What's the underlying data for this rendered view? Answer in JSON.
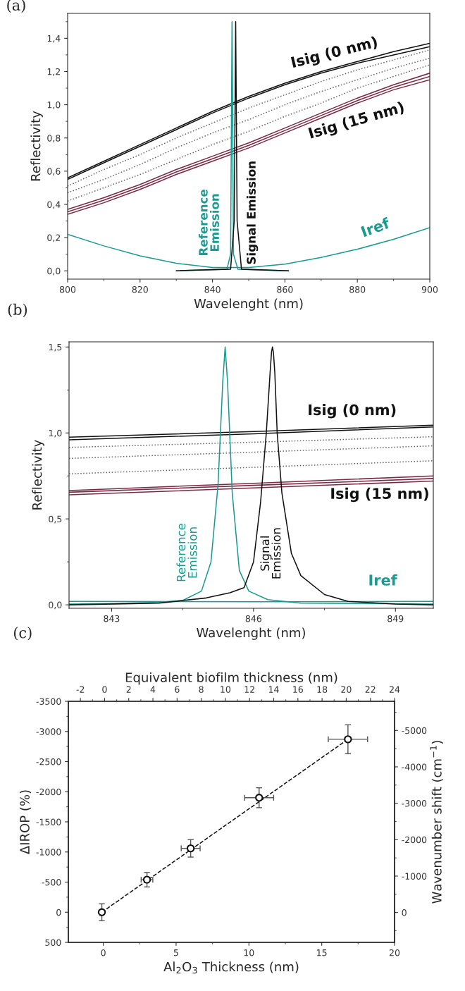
{
  "chart_data": [
    {
      "type": "line",
      "xlabel": "Wavelenght (nm)",
      "ylabel": "Reflectivity",
      "x": [
        800,
        810,
        820,
        830,
        840,
        850,
        860,
        870,
        880,
        890,
        900
      ],
      "xlim": [
        800,
        900
      ],
      "ylim": [
        -0.05,
        1.55
      ],
      "xticks": [
        800,
        {
          "value": 810,
          "label": null
        },
        820,
        {
          "value": 830,
          "label": null
        },
        840,
        {
          "value": 850,
          "label": null
        },
        860,
        {
          "value": 870,
          "label": null
        },
        880,
        {
          "value": 890,
          "label": null
        },
        900
      ],
      "yticks": [
        {
          "value": 0,
          "label": "0,0"
        },
        {
          "value": 0.1,
          "label": null
        },
        {
          "value": 0.2,
          "label": "0,2"
        },
        {
          "value": 0.3,
          "label": null
        },
        {
          "value": 0.4,
          "label": "0,4"
        },
        {
          "value": 0.5,
          "label": null
        },
        {
          "value": 0.6,
          "label": "0,6"
        },
        {
          "value": 0.7,
          "label": null
        },
        {
          "value": 0.8,
          "label": "0,8"
        },
        {
          "value": 0.9,
          "label": null
        },
        {
          "value": 1.0,
          "label": "1,0"
        },
        {
          "value": 1.1,
          "label": null
        },
        {
          "value": 1.2,
          "label": "1,2"
        },
        {
          "value": 1.3,
          "label": null
        },
        {
          "value": 1.4,
          "label": "1,4"
        },
        {
          "value": 1.5,
          "label": null
        }
      ],
      "series": [
        {
          "color": "#111111",
          "values": [
            0.56,
            0.66,
            0.76,
            0.86,
            0.96,
            1.05,
            1.13,
            1.2,
            1.26,
            1.32,
            1.37
          ]
        },
        {
          "color": "#111111",
          "values": [
            0.55,
            0.65,
            0.75,
            0.85,
            0.95,
            1.04,
            1.12,
            1.19,
            1.25,
            1.3,
            1.35
          ]
        },
        {
          "color": "#666666",
          "line_style": "dotted",
          "values": [
            0.51,
            0.61,
            0.7,
            0.8,
            0.89,
            0.98,
            1.06,
            1.14,
            1.21,
            1.27,
            1.33
          ]
        },
        {
          "color": "#666666",
          "line_style": "dotted",
          "values": [
            0.47,
            0.55,
            0.64,
            0.74,
            0.83,
            0.91,
            1.0,
            1.08,
            1.15,
            1.22,
            1.28
          ]
        },
        {
          "color": "#666666",
          "line_style": "dotted",
          "values": [
            0.42,
            0.5,
            0.58,
            0.67,
            0.76,
            0.84,
            0.93,
            1.01,
            1.1,
            1.17,
            1.24
          ]
        },
        {
          "color": "#7b2a45",
          "values": [
            0.37,
            0.44,
            0.52,
            0.61,
            0.69,
            0.77,
            0.86,
            0.95,
            1.04,
            1.12,
            1.19
          ]
        },
        {
          "color": "#7b2a45",
          "values": [
            0.355,
            0.425,
            0.505,
            0.595,
            0.675,
            0.755,
            0.845,
            0.935,
            1.025,
            1.105,
            1.17
          ]
        },
        {
          "color": "#7b2a45",
          "values": [
            0.34,
            0.41,
            0.49,
            0.58,
            0.66,
            0.74,
            0.83,
            0.92,
            1.01,
            1.09,
            1.15
          ]
        },
        {
          "color": "#1a9a90",
          "values": [
            0.22,
            0.15,
            0.09,
            0.045,
            0.02,
            0.02,
            0.04,
            0.08,
            0.13,
            0.19,
            0.26
          ]
        },
        {
          "color": "#1a9a90",
          "x": [
            830,
            844,
            845,
            845.4,
            845.8,
            847,
            861
          ],
          "values": [
            0.0,
            0.01,
            0.1,
            1.5,
            0.1,
            0.01,
            0.0
          ]
        },
        {
          "color": "#111111",
          "x": [
            830,
            845,
            846,
            846.4,
            846.8,
            848,
            861
          ],
          "values": [
            0.0,
            0.01,
            0.3,
            1.5,
            0.3,
            0.01,
            0.0
          ]
        }
      ],
      "annotations": [
        "(a)",
        "Isig (0 nm)",
        "Isig (15 nm)",
        "Iref",
        "Reference\nEmission",
        "Signal Emission"
      ]
    },
    {
      "type": "line",
      "xlabel": "Wavelenght (nm)",
      "ylabel": "Reflectivity",
      "x": [
        842.1,
        846,
        849.8
      ],
      "xlim": [
        842.1,
        849.8
      ],
      "ylim": [
        -0.02,
        1.53
      ],
      "xticks": [
        843,
        {
          "value": 844.5,
          "label": null
        },
        846,
        {
          "value": 847.5,
          "label": null
        },
        849
      ],
      "yticks": [
        {
          "value": 0,
          "label": "0,0"
        },
        {
          "value": 0.25,
          "label": null
        },
        {
          "value": 0.5,
          "label": "0,5"
        },
        {
          "value": 0.75,
          "label": null
        },
        {
          "value": 1.0,
          "label": "1,0"
        },
        {
          "value": 1.25,
          "label": null
        },
        {
          "value": 1.5,
          "label": "1,5"
        }
      ],
      "series": [
        {
          "color": "#111111",
          "values": [
            0.975,
            1.008,
            1.045
          ]
        },
        {
          "color": "#111111",
          "values": [
            0.96,
            0.995,
            1.035
          ]
        },
        {
          "color": "#666666",
          "line_style": "dotted",
          "values": [
            0.916,
            0.946,
            0.978
          ]
        },
        {
          "color": "#666666",
          "line_style": "dotted",
          "values": [
            0.852,
            0.888,
            0.925
          ]
        },
        {
          "color": "#666666",
          "line_style": "dotted",
          "values": [
            0.762,
            0.8,
            0.838
          ]
        },
        {
          "color": "#7b2a45",
          "values": [
            0.665,
            0.707,
            0.75
          ]
        },
        {
          "color": "#7b2a45",
          "values": [
            0.655,
            0.695,
            0.735
          ]
        },
        {
          "color": "#7b2a45",
          "values": [
            0.64,
            0.68,
            0.72
          ]
        },
        {
          "color": "#1a9a90",
          "values": [
            0.02,
            0.018,
            0.02
          ]
        },
        {
          "color": "#1a9a90",
          "x": [
            842.1,
            843,
            844,
            844.5,
            844.9,
            845.1,
            845.25,
            845.35,
            845.4,
            845.45,
            845.55,
            845.7,
            845.9,
            846.3,
            847,
            849.8
          ],
          "values": [
            0.005,
            0.008,
            0.015,
            0.025,
            0.08,
            0.25,
            0.7,
            1.3,
            1.5,
            1.3,
            0.65,
            0.2,
            0.08,
            0.03,
            0.01,
            0.005
          ]
        },
        {
          "color": "#111111",
          "x": [
            842.1,
            844,
            845,
            845.5,
            845.8,
            846.0,
            846.15,
            846.27,
            846.35,
            846.38,
            846.4,
            846.42,
            846.45,
            846.5,
            846.6,
            846.8,
            847,
            847.5,
            848,
            849,
            849.8
          ],
          "values": [
            0.0,
            0.01,
            0.04,
            0.07,
            0.1,
            0.25,
            0.6,
            1.0,
            1.35,
            1.47,
            1.5,
            1.47,
            1.35,
            1.0,
            0.65,
            0.3,
            0.17,
            0.06,
            0.02,
            0.005,
            0.0
          ]
        }
      ],
      "annotations": [
        "(b)",
        "Isig (0 nm)",
        "Isig (15 nm)",
        "Iref",
        "Reference\nEmission",
        "Signal\nEmission"
      ]
    },
    {
      "type": "scatter",
      "xlabel": "Al$_{2}$O$_{3}$ Thickness (nm)",
      "ylabel": "ΔIROP (%)",
      "y2label": "Wavenumber shift (cm$^{−1}$)",
      "x2label": "Equivalent biofilm thickness (nm)",
      "xlim": [
        -2.4,
        20
      ],
      "ylim": [
        500,
        -3500
      ],
      "x2lim": [
        -3,
        24
      ],
      "y2lim": [
        820,
        -5800
      ],
      "xticks": [
        0,
        {
          "value": 2.5,
          "label": null
        },
        5,
        {
          "value": 7.5,
          "label": null
        },
        10,
        {
          "value": 12.5,
          "label": null
        },
        15,
        {
          "value": 17.5,
          "label": null
        },
        20
      ],
      "yticks": [
        500,
        {
          "value": 250,
          "label": null
        },
        0,
        {
          "value": -250,
          "label": null
        },
        -500,
        {
          "value": -750,
          "label": null
        },
        -1000,
        {
          "value": -1250,
          "label": null
        },
        -1500,
        {
          "value": -1750,
          "label": null
        },
        -2000,
        {
          "value": -2250,
          "label": null
        },
        -2500,
        {
          "value": -2750,
          "label": null
        },
        -3000,
        {
          "value": -3250,
          "label": null
        },
        -3500
      ],
      "x2ticks": [
        -2,
        {
          "value": -1,
          "label": null
        },
        0,
        {
          "value": 1,
          "label": null
        },
        2,
        {
          "value": 3,
          "label": null
        },
        4,
        {
          "value": 5,
          "label": null
        },
        6,
        {
          "value": 7,
          "label": null
        },
        8,
        {
          "value": 9,
          "label": null
        },
        10,
        {
          "value": 11,
          "label": null
        },
        12,
        {
          "value": 13,
          "label": null
        },
        14,
        {
          "value": 15,
          "label": null
        },
        16,
        {
          "value": 17,
          "label": null
        },
        18,
        {
          "value": 19,
          "label": null
        },
        20,
        {
          "value": 21,
          "label": null
        },
        22,
        {
          "value": 23,
          "label": null
        },
        24
      ],
      "y2ticks": [
        {
          "value": 500,
          "label": null
        },
        0,
        {
          "value": -500,
          "label": null
        },
        -1000,
        {
          "value": -1500,
          "label": null
        },
        -2000,
        {
          "value": -2500,
          "label": null
        },
        -3000,
        {
          "value": -3500,
          "label": null
        },
        -4000,
        {
          "value": -4500,
          "label": null
        },
        -5000,
        {
          "value": -5500,
          "label": null
        }
      ],
      "series": [
        {
          "type": "line",
          "color": "#111111",
          "line_style": "dashed",
          "x": [
            -0.1,
            16.8
          ],
          "values": [
            0,
            -2870
          ]
        },
        {
          "type": "scatter",
          "color": "#111111",
          "marker": "circle",
          "x": [
            -0.1,
            3.0,
            6.0,
            10.7,
            16.8
          ],
          "values": [
            0,
            -540,
            -1060,
            -1900,
            -2870
          ],
          "errors": [
            140,
            120,
            145,
            165,
            240
          ],
          "xerrors": [
            null,
            0.4,
            0.65,
            1.0,
            1.35
          ]
        }
      ],
      "annotations": [
        "(c)"
      ]
    }
  ]
}
